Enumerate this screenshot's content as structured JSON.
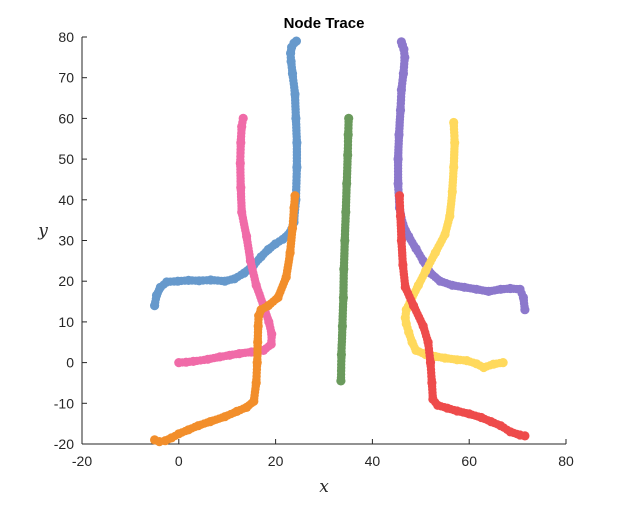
{
  "chart_data": {
    "type": "scatter",
    "title": "Node Trace",
    "xlabel": "x",
    "ylabel": "y",
    "xlim": [
      -20,
      80
    ],
    "ylim": [
      -20,
      80
    ],
    "xticks": [
      -20,
      0,
      20,
      40,
      60,
      80
    ],
    "yticks": [
      -20,
      -10,
      0,
      10,
      20,
      30,
      40,
      50,
      60,
      70,
      80
    ],
    "grid": false,
    "legend": "none",
    "series": [
      {
        "color": "#6699cc",
        "x": [
          -5,
          -4.6,
          -3.8,
          -2.5,
          -0.2,
          2,
          4.2,
          6.6,
          9.5,
          11.5,
          13.5,
          15.5,
          17,
          18.5,
          20,
          21.5,
          23,
          23.8,
          24.2,
          24.4,
          24.4,
          24.2,
          24,
          23.5,
          23.2,
          23.1,
          23.3,
          23.8,
          24.3
        ],
        "y": [
          14,
          16.5,
          18.5,
          19.8,
          20,
          20.2,
          20.1,
          20.3,
          20,
          20.6,
          22,
          24,
          26,
          27.8,
          29.2,
          30.3,
          32,
          34.5,
          40,
          48,
          54,
          60,
          66,
          71,
          74,
          76,
          77.5,
          78.5,
          79
        ]
      },
      {
        "color": "#f06ba8",
        "x": [
          0,
          1.5,
          3,
          6,
          8.5,
          10.5,
          12.5,
          15,
          17.5,
          19.1,
          19.2,
          18.6,
          17.5,
          16,
          14.8,
          14,
          13,
          12.8,
          12.7,
          12.8,
          13,
          13.3
        ],
        "y": [
          0,
          0.1,
          0.3,
          0.8,
          1.4,
          1.8,
          2.2,
          2.6,
          3,
          4.5,
          7,
          10,
          14,
          19,
          25,
          31,
          37,
          43,
          49,
          54,
          58,
          60
        ]
      },
      {
        "color": "#f28e2b",
        "x": [
          -5,
          -4,
          -2.8,
          -1.5,
          0,
          2,
          4,
          6.5,
          9.5,
          12,
          14,
          15.5,
          16,
          16.2,
          16.3,
          16.4,
          16.5,
          17,
          18.5,
          20.5,
          22.2,
          23,
          23.5,
          23.8,
          24
        ],
        "y": [
          -19,
          -19.4,
          -19.2,
          -18.5,
          -17.5,
          -16.5,
          -15.5,
          -14.5,
          -13.3,
          -12,
          -11,
          -9.5,
          -5,
          0,
          5,
          9,
          11.5,
          13,
          14,
          16,
          21,
          27,
          33,
          38,
          41
        ]
      },
      {
        "color": "#6a9a5c",
        "x": [
          33.5,
          33.6,
          33.8,
          34,
          34.1,
          34.3,
          34.5,
          34.7,
          34.9,
          35,
          35.1
        ],
        "y": [
          -4.5,
          2,
          9,
          16,
          23,
          30,
          37,
          44,
          51,
          56,
          60
        ]
      },
      {
        "color": "#8c78cc",
        "x": [
          71.5,
          71.2,
          70.5,
          68.5,
          66.5,
          64,
          61.5,
          59,
          56.5,
          54,
          52,
          50.5,
          49,
          47.5,
          46.3,
          45.6,
          45.3,
          45.3,
          45.5,
          45.8,
          46,
          46.4,
          46.7,
          46.5,
          46.2,
          46
        ],
        "y": [
          13,
          16,
          18,
          18.2,
          18,
          17.5,
          18,
          18.5,
          19,
          20,
          22,
          25,
          28,
          31,
          34,
          38,
          44,
          50,
          56,
          62,
          67,
          71,
          75,
          77,
          78,
          78.8
        ]
      },
      {
        "color": "#ffd95c",
        "x": [
          67,
          65,
          63,
          61.5,
          59.5,
          57.5,
          55,
          53,
          51,
          49,
          48.2,
          47.5,
          47,
          46.8,
          47,
          48,
          49.5,
          51,
          53,
          55,
          56,
          56.5,
          56.8,
          57,
          56.8
        ],
        "y": [
          0,
          -0.4,
          -1.2,
          -0.3,
          0.5,
          0.7,
          1.1,
          1.5,
          2,
          3,
          5,
          7.5,
          9.5,
          11,
          13,
          15.5,
          19,
          22.5,
          27,
          31.5,
          36,
          42,
          48,
          54,
          59
        ]
      },
      {
        "color": "#ee4b4b",
        "x": [
          71.5,
          70.5,
          68.5,
          66.5,
          64.5,
          62.5,
          60,
          57.5,
          55.5,
          53.5,
          52.5,
          52.3,
          52,
          51.5,
          50.5,
          48.5,
          46.8,
          46.3,
          46,
          45.8,
          45.6
        ],
        "y": [
          -18,
          -17.8,
          -17,
          -15.5,
          -14.5,
          -13.5,
          -12.6,
          -11.9,
          -11.2,
          -10.5,
          -9,
          -5,
          0,
          5,
          9,
          14,
          18.5,
          24,
          30,
          36,
          41
        ]
      }
    ]
  }
}
